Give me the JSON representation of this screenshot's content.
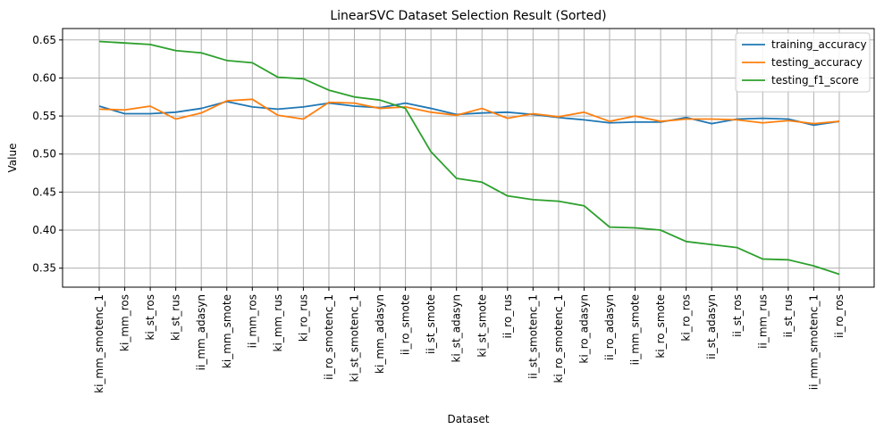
{
  "chart_data": {
    "type": "line",
    "title": "LinearSVC Dataset Selection Result (Sorted)",
    "xlabel": "Dataset",
    "ylabel": "Value",
    "ylim": [
      0.325,
      0.665
    ],
    "yticks": [
      "0.35",
      "0.40",
      "0.45",
      "0.50",
      "0.55",
      "0.60",
      "0.65"
    ],
    "grid": true,
    "legend_position": "top-right",
    "categories": [
      "ki_mm_smotenc_1",
      "ki_mm_ros",
      "ki_st_ros",
      "ki_st_rus",
      "ii_mm_adasyn",
      "ki_mm_smote",
      "ii_mm_ros",
      "ki_mm_rus",
      "ki_ro_rus",
      "ii_ro_smotenc_1",
      "ki_st_smotenc_1",
      "ki_mm_adasyn",
      "ii_ro_smote",
      "ii_st_smote",
      "ki_st_adasyn",
      "ki_st_smote",
      "ii_ro_rus",
      "ii_st_smotenc_1",
      "ki_ro_smotenc_1",
      "ki_ro_adasyn",
      "ii_ro_adasyn",
      "ii_mm_smote",
      "ki_ro_smote",
      "ki_ro_ros",
      "ii_st_adasyn",
      "ii_st_ros",
      "ii_mm_rus",
      "ii_st_rus",
      "ii_mm_smotenc_1",
      "ii_ro_ros"
    ],
    "series": [
      {
        "name": "training_accuracy",
        "color": "#1f77b4",
        "values": [
          0.563,
          0.553,
          0.553,
          0.555,
          0.56,
          0.569,
          0.562,
          0.559,
          0.562,
          0.567,
          0.563,
          0.561,
          0.567,
          0.56,
          0.552,
          0.554,
          0.555,
          0.552,
          0.548,
          0.545,
          0.541,
          0.542,
          0.542,
          0.548,
          0.54,
          0.546,
          0.547,
          0.546,
          0.538,
          0.543
        ]
      },
      {
        "name": "testing_accuracy",
        "color": "#ff7f0e",
        "values": [
          0.559,
          0.558,
          0.563,
          0.546,
          0.554,
          0.57,
          0.572,
          0.551,
          0.546,
          0.568,
          0.567,
          0.56,
          0.562,
          0.555,
          0.551,
          0.56,
          0.547,
          0.553,
          0.549,
          0.555,
          0.543,
          0.55,
          0.543,
          0.546,
          0.546,
          0.545,
          0.541,
          0.544,
          0.54,
          0.543
        ]
      },
      {
        "name": "testing_f1_score",
        "color": "#2ca02c",
        "values": [
          0.648,
          0.646,
          0.644,
          0.636,
          0.633,
          0.623,
          0.62,
          0.601,
          0.599,
          0.584,
          0.575,
          0.571,
          0.56,
          0.503,
          0.468,
          0.463,
          0.445,
          0.44,
          0.438,
          0.432,
          0.404,
          0.403,
          0.4,
          0.385,
          0.381,
          0.377,
          0.362,
          0.361,
          0.353,
          0.342
        ]
      }
    ]
  }
}
